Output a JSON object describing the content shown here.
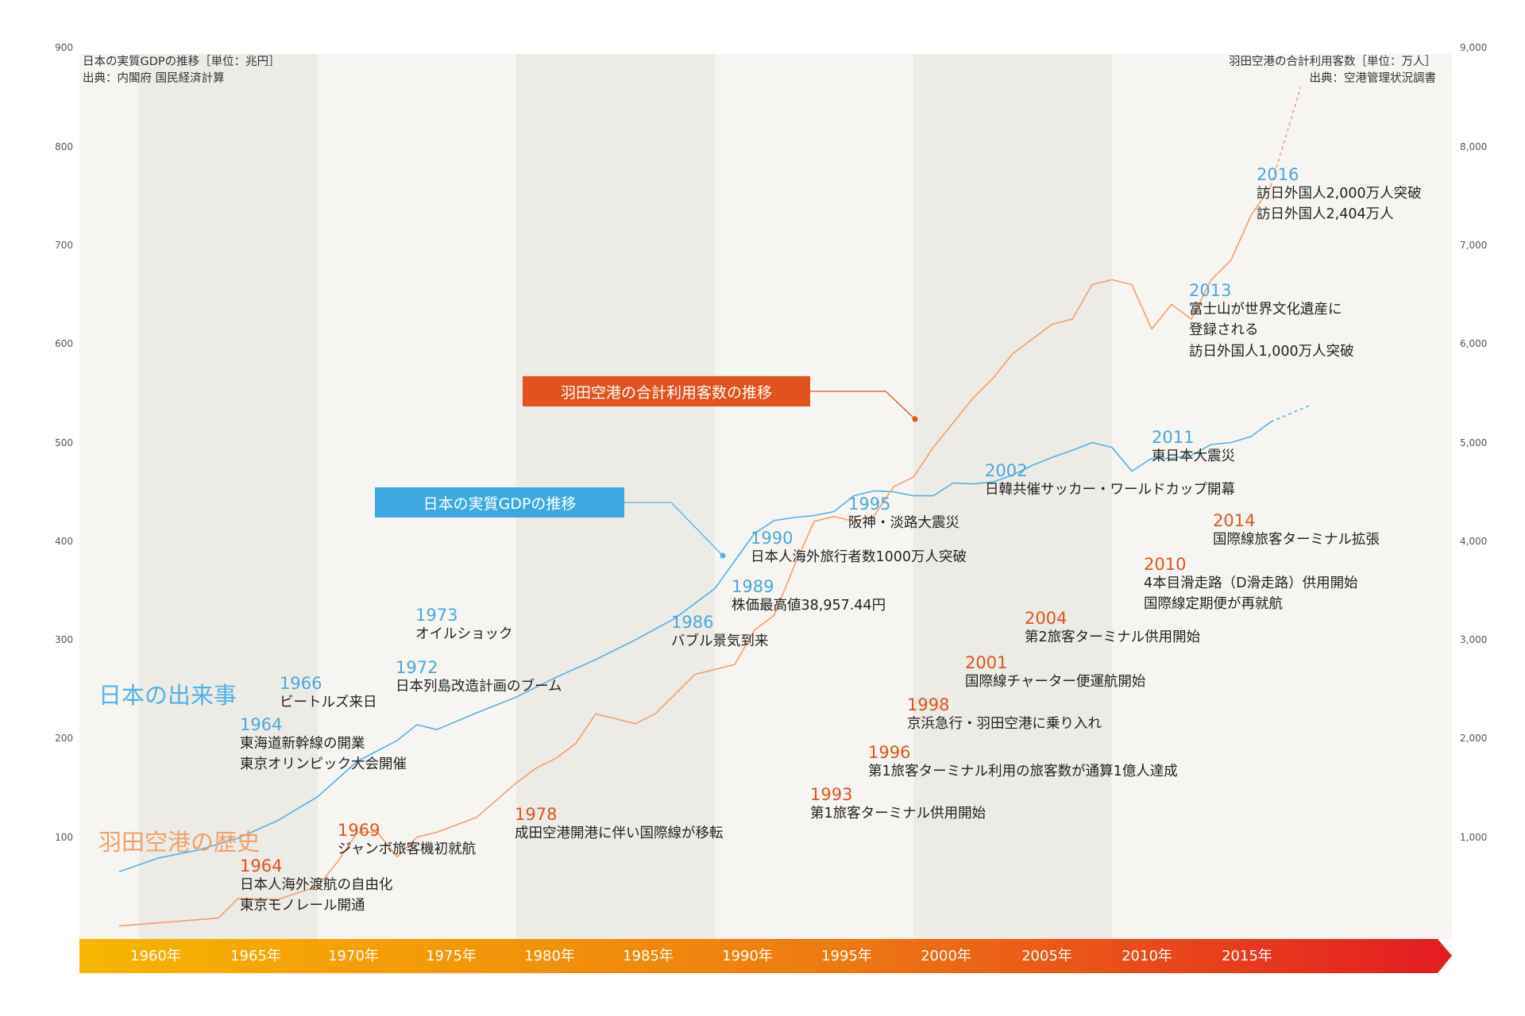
{
  "colors": {
    "gdp": "#52b2e3",
    "passengers": "#f2a06a",
    "jp_event_year": "#4aa8dc",
    "haneda_event_year": "#e0531f",
    "callout_gdp": "#3da9e0",
    "callout_passengers": "#e0531f",
    "timeline_start": "#f7b500",
    "timeline_end": "#e41b23"
  },
  "notes": {
    "left_line1": "日本の実質GDPの推移［単位：兆円］",
    "left_line2": "出典：内閣府 国民経済計算",
    "right_line1": "羽田空港の合計利用客数［単位：万人］",
    "right_line2": "出典：空港管理状況調書"
  },
  "callouts": {
    "passengers": "羽田空港の合計利用客数の推移",
    "gdp": "日本の実質GDPの推移"
  },
  "section_titles": {
    "japan": "日本の出来事",
    "haneda": "羽田空港の歴史"
  },
  "timeline": {
    "years": [
      "1960年",
      "1965年",
      "1970年",
      "1975年",
      "1980年",
      "1985年",
      "1990年",
      "1995年",
      "2000年",
      "2005年",
      "2010年",
      "2015年"
    ]
  },
  "events": [
    {
      "year": "1964",
      "type": "jp",
      "lines": [
        "東海道新幹線の開業",
        "東京オリンピック大会開催"
      ]
    },
    {
      "year": "1966",
      "type": "jp",
      "lines": [
        "ビートルズ来日"
      ]
    },
    {
      "year": "1972",
      "type": "jp",
      "lines": [
        "日本列島改造計画のブーム"
      ]
    },
    {
      "year": "1973",
      "type": "jp",
      "lines": [
        "オイルショック"
      ]
    },
    {
      "year": "1986",
      "type": "jp",
      "lines": [
        "バブル景気到来"
      ]
    },
    {
      "year": "1989",
      "type": "jp",
      "lines": [
        "株価最高値38,957.44円"
      ]
    },
    {
      "year": "1990",
      "type": "jp",
      "lines": [
        "日本人海外旅行者数1000万人突破"
      ]
    },
    {
      "year": "1995",
      "type": "jp",
      "lines": [
        "阪神・淡路大震災"
      ]
    },
    {
      "year": "2002",
      "type": "jp",
      "lines": [
        "日韓共催サッカー・ワールドカップ開幕"
      ]
    },
    {
      "year": "2011",
      "type": "jp",
      "lines": [
        "東日本大震災"
      ]
    },
    {
      "year": "2013",
      "type": "jp",
      "lines": [
        "富士山が世界文化遺産に",
        "登録される",
        "訪日外国人1,000万人突破"
      ]
    },
    {
      "year": "2016",
      "type": "jp",
      "lines": [
        "訪日外国人2,000万人突破",
        "訪日外国人2,404万人"
      ]
    },
    {
      "year": "1964",
      "type": "hnd",
      "lines": [
        "日本人海外渡航の自由化",
        "東京モノレール開通"
      ]
    },
    {
      "year": "1969",
      "type": "hnd",
      "lines": [
        "ジャンボ旅客機初就航"
      ]
    },
    {
      "year": "1978",
      "type": "hnd",
      "lines": [
        "成田空港開港に伴い国際線が移転"
      ]
    },
    {
      "year": "1993",
      "type": "hnd",
      "lines": [
        "第1旅客ターミナル供用開始"
      ]
    },
    {
      "year": "1996",
      "type": "hnd",
      "lines": [
        "第1旅客ターミナル利用の旅客数が通算1億人達成"
      ]
    },
    {
      "year": "1998",
      "type": "hnd",
      "lines": [
        "京浜急行・羽田空港に乗り入れ"
      ]
    },
    {
      "year": "2001",
      "type": "hnd",
      "lines": [
        "国際線チャーター便運航開始"
      ]
    },
    {
      "year": "2004",
      "type": "hnd",
      "lines": [
        "第2旅客ターミナル供用開始"
      ]
    },
    {
      "year": "2010",
      "type": "hnd",
      "lines": [
        "4本目滑走路（D滑走路）供用開始",
        "国際線定期便が再就航"
      ]
    },
    {
      "year": "2014",
      "type": "hnd",
      "lines": [
        "国際線旅客ターミナル拡張"
      ]
    }
  ],
  "chart_data": {
    "type": "line",
    "x_range": [
      1958,
      2018
    ],
    "y_left": {
      "ticks": [
        "900",
        "800",
        "700",
        "600",
        "500",
        "400",
        "300",
        "200",
        "100"
      ],
      "range": [
        0,
        900
      ]
    },
    "y_right": {
      "ticks": [
        "9,000",
        "8,000",
        "7,000",
        "6,000",
        "5,000",
        "4,000",
        "3,000",
        "2,000",
        "1,000"
      ],
      "range": [
        0,
        9000
      ]
    },
    "grid": false,
    "series": [
      {
        "axis": "left",
        "x": [
          1958,
          1960,
          1962,
          1964,
          1966,
          1968,
          1970,
          1972,
          1973,
          1974,
          1976,
          1978,
          1980,
          1982,
          1984,
          1986,
          1988,
          1990,
          1991,
          1992,
          1993,
          1994,
          1995,
          1996,
          1997,
          1998,
          1999,
          2000,
          2001,
          2002,
          2003,
          2004,
          2005,
          2006,
          2007,
          2008,
          2009,
          2010,
          2011,
          2012,
          2013,
          2014,
          2015,
          2016
        ],
        "y": [
          65,
          79,
          87,
          99,
          117,
          141,
          177,
          198,
          214,
          209,
          226,
          242,
          262,
          280,
          300,
          322,
          352,
          408,
          421,
          424,
          426,
          430,
          446,
          451,
          450,
          446,
          446,
          459,
          458,
          460,
          467,
          477,
          485,
          492,
          500,
          495,
          471,
          484,
          484,
          487,
          498,
          500,
          506,
          521
        ],
        "projection": {
          "x": [
            2016,
            2018
          ],
          "y": [
            521,
            538
          ]
        }
      },
      {
        "axis": "right",
        "x": [
          1958,
          1963,
          1964,
          1966,
          1968,
          1969,
          1970,
          1971,
          1972,
          1973,
          1974,
          1976,
          1978,
          1979,
          1980,
          1981,
          1982,
          1983,
          1984,
          1985,
          1986,
          1987,
          1988,
          1989,
          1990,
          1991,
          1992,
          1993,
          1994,
          1995,
          1996,
          1997,
          1998,
          1999,
          2000,
          2001,
          2002,
          2003,
          2004,
          2005,
          2006,
          2007,
          2008,
          2009,
          2010,
          2011,
          2012,
          2013,
          2014,
          2015,
          2016
        ],
        "y": [
          100,
          180,
          380,
          370,
          500,
          750,
          1050,
          1050,
          800,
          1000,
          1050,
          1200,
          1550,
          1700,
          1800,
          1950,
          2250,
          2200,
          2150,
          2250,
          2450,
          2650,
          2700,
          2750,
          3100,
          3250,
          3750,
          4200,
          4250,
          4200,
          4250,
          4550,
          4650,
          4950,
          5200,
          5450,
          5650,
          5900,
          6050,
          6200,
          6250,
          6600,
          6650,
          6600,
          6150,
          6400,
          6250,
          6650,
          6850,
          7300,
          7600
        ],
        "projection": {
          "x": [
            2016,
            2017.5
          ],
          "y": [
            7600,
            8600
          ]
        }
      }
    ]
  }
}
